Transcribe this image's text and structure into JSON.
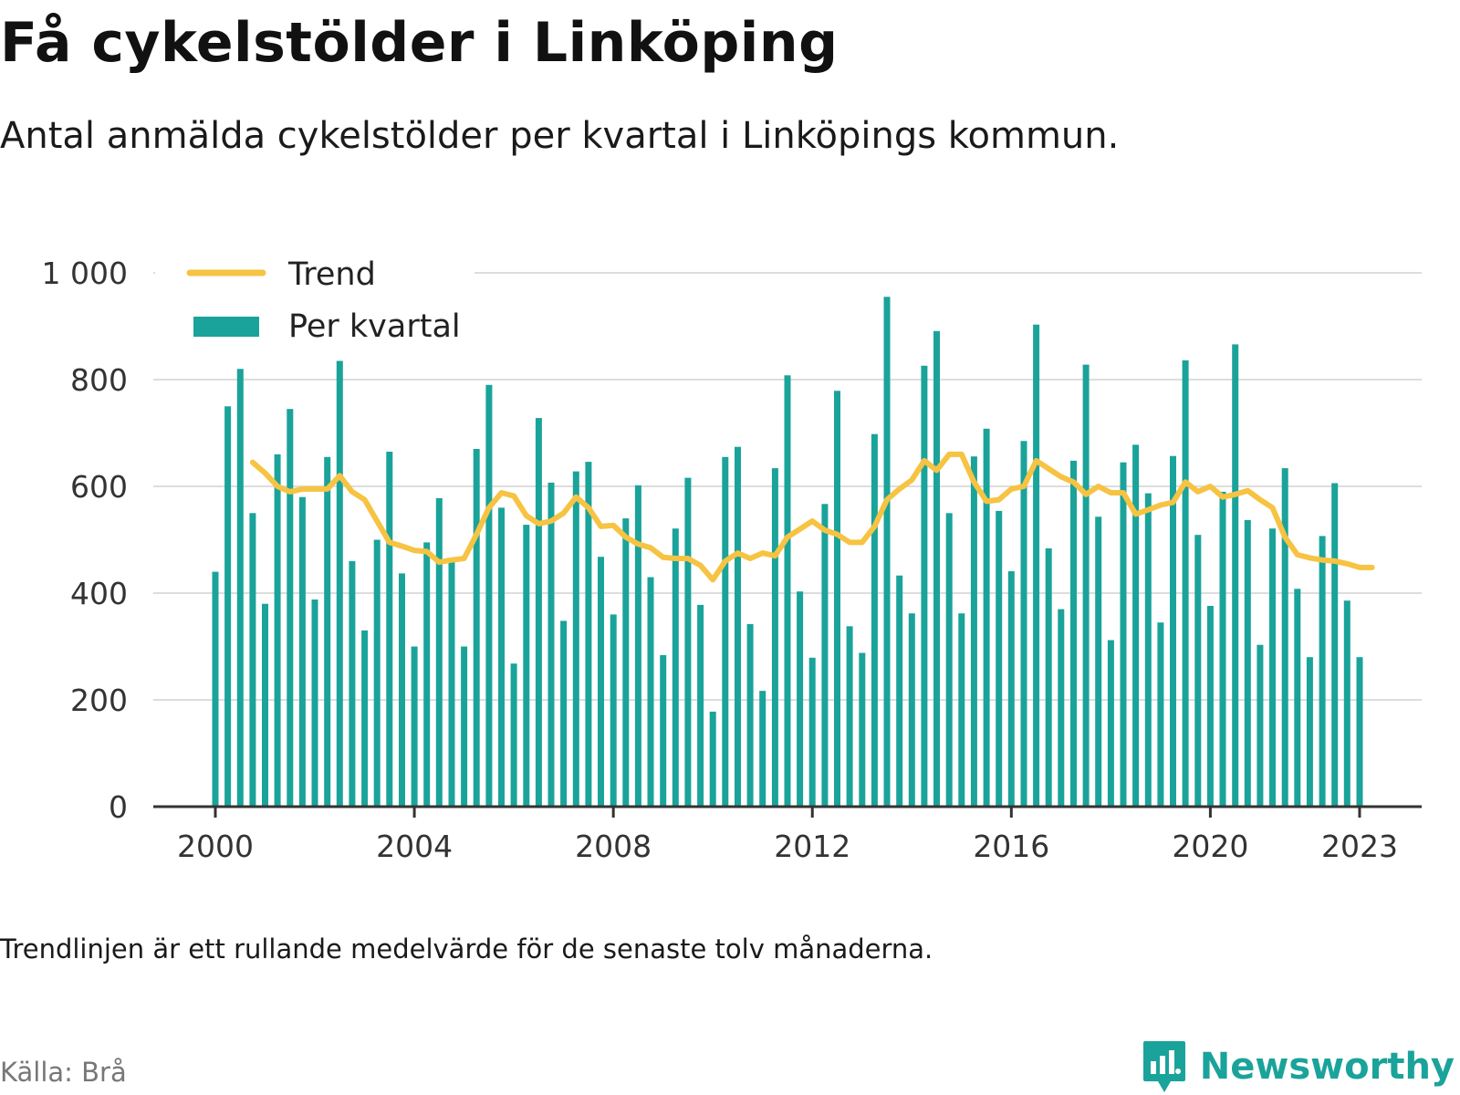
{
  "title": "Få cykelstölder i Linköping",
  "subtitle": "Antal anmälda cykelstölder per kvartal i Linköpings kommun.",
  "note": "Trendlinjen är ett rullande medelvärde för de senaste tolv månaderna.",
  "source": "Källa: Brå",
  "brand": "Newsworthy",
  "colors": {
    "bars": "#1aa39a",
    "trend": "#f6c342",
    "axis": "#333333",
    "grid": "#dddddd",
    "brand": "#1aa39a"
  },
  "chart_data": {
    "type": "bar",
    "x_unit": "quarter",
    "x_start": "2000-Q1",
    "xticks": [
      "2000",
      "2004",
      "2008",
      "2012",
      "2016",
      "2020",
      "2023"
    ],
    "yticks": [
      "0",
      "200",
      "400",
      "600",
      "800",
      "1 000"
    ],
    "ylim": [
      0,
      1000
    ],
    "grid": true,
    "legend_position": "top-left",
    "series": [
      {
        "name": "Per kvartal",
        "type": "bar",
        "values": [
          440,
          750,
          820,
          550,
          380,
          660,
          745,
          580,
          388,
          655,
          835,
          460,
          330,
          500,
          665,
          437,
          300,
          495,
          578,
          462,
          300,
          670,
          790,
          560,
          268,
          528,
          728,
          607,
          348,
          628,
          646,
          468,
          360,
          540,
          602,
          430,
          284,
          521,
          616,
          378,
          178,
          655,
          674,
          342,
          217,
          634,
          808,
          403,
          279,
          567,
          779,
          338,
          288,
          698,
          955,
          433,
          362,
          826,
          891,
          550,
          362,
          656,
          708,
          554,
          441,
          685,
          903,
          484,
          370,
          648,
          828,
          543,
          312,
          645,
          678,
          587,
          345,
          657,
          836,
          509,
          376,
          590,
          866,
          537,
          303,
          521,
          634,
          408,
          280,
          507,
          606,
          386,
          280
        ]
      },
      {
        "name": "Trend",
        "type": "line",
        "start_index": 3,
        "values": [
          645,
          625,
          600,
          590,
          595,
          595,
          595,
          620,
          590,
          575,
          535,
          495,
          488,
          480,
          478,
          458,
          462,
          465,
          510,
          560,
          588,
          582,
          545,
          530,
          535,
          550,
          580,
          560,
          525,
          527,
          505,
          492,
          485,
          467,
          465,
          465,
          452,
          425,
          460,
          475,
          465,
          475,
          470,
          505,
          520,
          535,
          518,
          510,
          495,
          495,
          525,
          575,
          595,
          612,
          648,
          630,
          660,
          660,
          608,
          572,
          575,
          595,
          600,
          648,
          633,
          618,
          608,
          585,
          600,
          588,
          588,
          548,
          556,
          565,
          570,
          608,
          590,
          600,
          580,
          585,
          592,
          575,
          560,
          505,
          472,
          466,
          462,
          460,
          455,
          448,
          448
        ]
      }
    ]
  }
}
